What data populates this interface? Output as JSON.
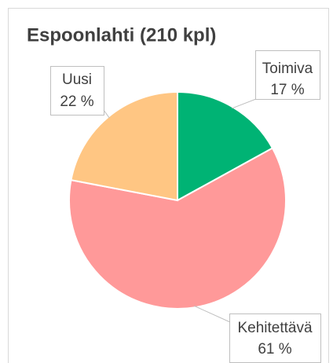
{
  "chart_data": {
    "type": "pie",
    "title": "Espoonlahti (210 kpl)",
    "categories": [
      "Toimiva",
      "Kehitettävä",
      "Uusi"
    ],
    "values": [
      17,
      61,
      22
    ],
    "value_labels": [
      "17 %",
      "61 %",
      "22 %"
    ],
    "colors": [
      "#00b374",
      "#ff9999",
      "#ffc683"
    ]
  }
}
